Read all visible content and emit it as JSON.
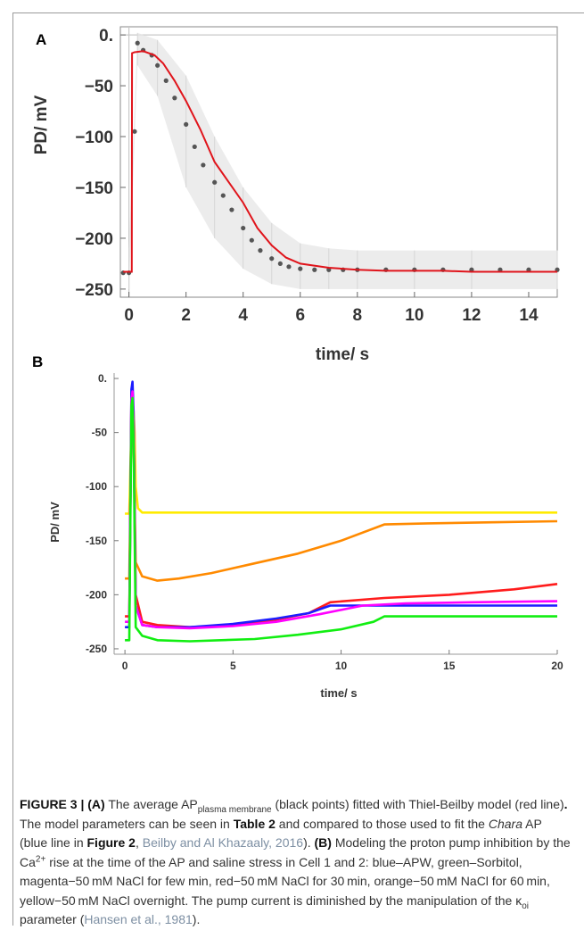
{
  "panel_a": {
    "letter": "A",
    "ylabel": "PD/ mV",
    "xlabel": "time/ s",
    "yticks": [
      0,
      -50,
      -100,
      -150,
      -200,
      -250
    ],
    "ytick_labels": [
      "0.",
      "−50",
      "−100",
      "−150",
      "−200",
      "−250"
    ],
    "xticks": [
      0,
      2,
      4,
      6,
      8,
      10,
      12,
      14
    ],
    "xtick_labels": [
      "0",
      "2",
      "4",
      "6",
      "8",
      "10",
      "12",
      "14"
    ]
  },
  "panel_b": {
    "letter": "B",
    "ylabel": "PD/ mV",
    "xlabel": "time/ s",
    "yticks": [
      0,
      -50,
      -100,
      -150,
      -200,
      -250
    ],
    "ytick_labels": [
      "0.",
      "-50",
      "-100",
      "-150",
      "-200",
      "-250"
    ],
    "xticks": [
      0,
      5,
      10,
      15,
      20
    ],
    "xtick_labels": [
      "0",
      "5",
      "10",
      "15",
      "20"
    ]
  },
  "chart_data": [
    {
      "type": "scatter",
      "panel": "A",
      "xlabel": "time/ s",
      "ylabel": "PD/ mV",
      "xlim": [
        -0.3,
        15
      ],
      "ylim": [
        -258,
        8
      ],
      "grid": false,
      "colors": {
        "points": "#555555",
        "error_bars": "#d6d6d6",
        "model": "#e0141b",
        "zero_line": "#c8c8c8"
      },
      "series": [
        {
          "kind": "points",
          "color": "#555555",
          "x": [
            -0.2,
            0.0,
            0.2,
            0.3,
            0.5,
            0.8,
            1.0,
            1.3,
            1.6,
            2.0,
            2.3,
            2.6,
            3.0,
            3.3,
            3.6,
            4.0,
            4.3,
            4.6,
            5.0,
            5.3,
            5.6,
            6.0,
            6.5,
            7.0,
            7.5,
            8.0,
            9.0,
            10.0,
            11.0,
            12.0,
            13.0,
            14.0,
            15.0
          ],
          "y": [
            -234,
            -234,
            -95,
            -8,
            -15,
            -20,
            -30,
            -45,
            -62,
            -88,
            -110,
            -128,
            -145,
            -158,
            -172,
            -190,
            -202,
            -212,
            -220,
            -225,
            -228,
            -230,
            -231,
            -231,
            -231,
            -231,
            -231,
            -231,
            -231,
            -231,
            -231,
            -231,
            -231
          ]
        },
        {
          "kind": "error_band",
          "color": "#d6d6d6",
          "x": [
            0.0,
            0.3,
            1.0,
            2.0,
            3.0,
            4.0,
            5.0,
            6.0,
            7.0,
            8.0,
            10.0,
            12.0,
            15.0
          ],
          "upper": [
            -210,
            2,
            -5,
            -40,
            -100,
            -150,
            -185,
            -205,
            -210,
            -212,
            -212,
            -212,
            -212
          ],
          "lower": [
            -250,
            -30,
            -60,
            -150,
            -200,
            -230,
            -245,
            -250,
            -250,
            -250,
            -250,
            -250,
            -250
          ]
        },
        {
          "kind": "line",
          "color": "#e0141b",
          "x": [
            -0.2,
            0.1,
            0.11,
            0.2,
            0.5,
            0.9,
            1.2,
            1.6,
            2.0,
            2.5,
            3.0,
            3.5,
            4.0,
            4.5,
            5.0,
            5.5,
            6.0,
            7.0,
            8.0,
            9.0,
            10.0,
            11.0,
            12.0,
            13.0,
            14.0,
            15.0
          ],
          "y": [
            -233,
            -233,
            -18,
            -17,
            -16,
            -20,
            -28,
            -45,
            -65,
            -93,
            -125,
            -145,
            -165,
            -190,
            -207,
            -219,
            -225,
            -229,
            -231,
            -232,
            -232,
            -232,
            -233,
            -233,
            -233,
            -233
          ]
        }
      ]
    },
    {
      "type": "line",
      "panel": "B",
      "xlabel": "time/ s",
      "ylabel": "PD/ mV",
      "xlim": [
        -0.5,
        20
      ],
      "ylim": [
        -255,
        5
      ],
      "grid": false,
      "series": [
        {
          "color": "#ffeb00",
          "x": [
            0.0,
            0.2,
            0.3,
            0.35,
            0.4,
            0.45,
            0.5,
            0.6,
            0.8,
            1.2,
            5,
            10,
            15,
            20
          ],
          "y": [
            -125,
            -125,
            -40,
            -28,
            -30,
            -50,
            -100,
            -120,
            -124,
            -124,
            -124,
            -124,
            -124,
            -124
          ]
        },
        {
          "color": "#ff8a00",
          "x": [
            0.0,
            0.2,
            0.3,
            0.35,
            0.4,
            0.5,
            0.8,
            1.5,
            2.5,
            4.0,
            6.0,
            8.0,
            10.0,
            12.0,
            14.0,
            17.0,
            20.0
          ],
          "y": [
            -185,
            -185,
            -40,
            -30,
            -55,
            -170,
            -183,
            -187,
            -185,
            -180,
            -171,
            -162,
            -150,
            -135,
            -134,
            -133,
            -132
          ]
        },
        {
          "color": "#ff1c1c",
          "x": [
            0.0,
            0.2,
            0.3,
            0.35,
            0.4,
            0.5,
            0.8,
            1.5,
            3.0,
            5.0,
            7.0,
            8.5,
            9.5,
            12.0,
            15.0,
            18.0,
            20.0
          ],
          "y": [
            -220,
            -220,
            -15,
            -10,
            -40,
            -200,
            -225,
            -228,
            -230,
            -228,
            -223,
            -217,
            -207,
            -203,
            -200,
            -195,
            -190
          ]
        },
        {
          "color": "#1c1cff",
          "x": [
            0.0,
            0.2,
            0.3,
            0.35,
            0.4,
            0.5,
            0.8,
            1.5,
            3.0,
            5.0,
            7.0,
            8.5,
            9.5,
            11.0,
            14.0,
            17.0,
            20.0
          ],
          "y": [
            -230,
            -230,
            -10,
            -3,
            -30,
            -210,
            -228,
            -230,
            -230,
            -227,
            -222,
            -217,
            -210,
            -210,
            -210,
            -210,
            -210
          ]
        },
        {
          "color": "#ff00ff",
          "x": [
            0.0,
            0.2,
            0.3,
            0.35,
            0.4,
            0.5,
            0.8,
            1.5,
            3.0,
            5.0,
            7.0,
            9.0,
            11.0,
            13.0,
            16.0,
            20.0
          ],
          "y": [
            -225,
            -225,
            -20,
            -12,
            -40,
            -210,
            -228,
            -230,
            -231,
            -229,
            -225,
            -218,
            -210,
            -208,
            -207,
            -206
          ]
        },
        {
          "color": "#11ee11",
          "x": [
            0.0,
            0.2,
            0.3,
            0.35,
            0.4,
            0.5,
            0.8,
            1.5,
            3.0,
            6.0,
            8.0,
            10.0,
            11.5,
            12.0,
            15.0,
            20.0
          ],
          "y": [
            -242,
            -242,
            -25,
            -18,
            -60,
            -230,
            -238,
            -242,
            -243,
            -241,
            -237,
            -232,
            -225,
            -220,
            -220,
            -220
          ]
        }
      ]
    }
  ],
  "caption": {
    "label": "FIGURE 3 |",
    "a": "(A)",
    "t1": " The average AP",
    "sub1": "plasma membrane",
    "t2": " (black points) fitted with Thiel-Beilby model (red line)",
    "dot": ".",
    "t3": " The model parameters can be seen in ",
    "table": "Table 2",
    "t4": " and compared to those used to fit the ",
    "chara": "Chara",
    "t5": " AP (blue line in ",
    "fig2": "Figure 2",
    "t6": ", ",
    "ref1": "Beilby and Al Khazaaly, 2016",
    "t7": "). ",
    "b": "(B)",
    "t8": " Modeling the proton pump inhibition by the Ca",
    "sup": "2+",
    "t9": " rise at the time of the AP and saline stress in Cell 1 and 2: blue–APW, green–Sorbitol, magenta−50 mM NaCl for few min, red−50 mM NaCl for 30 min, orange−50 mM NaCl for 60 min, yellow−50 mM NaCl overnight. The pump current is diminished by the manipulation of the κ",
    "sub2": "oi",
    "t10": " parameter (",
    "ref2": "Hansen et al., 1981",
    "t11": ")."
  }
}
